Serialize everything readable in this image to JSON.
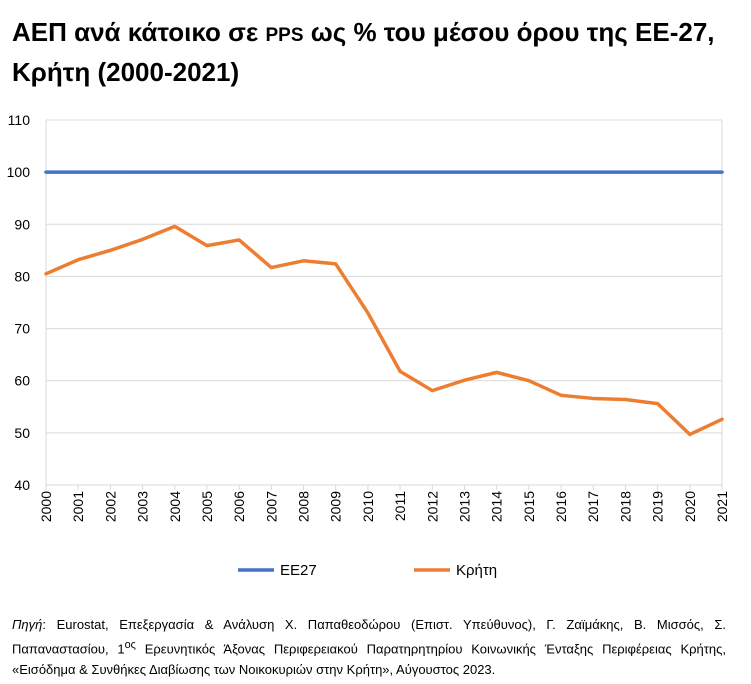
{
  "title": {
    "part1": "ΑΕΠ ανά κάτοικο σε",
    "pps": "PPS",
    "part2": "ως % του μέσου όρου της ΕΕ-27, Κρήτη (2000-2021)"
  },
  "chart_data": {
    "type": "line",
    "title": "ΑΕΠ ανά κάτοικο σε PPS ως % του μέσου όρου της ΕΕ-27, Κρήτη (2000-2021)",
    "x": [
      "2000",
      "2001",
      "2002",
      "2003",
      "2004",
      "2005",
      "2006",
      "2007",
      "2008",
      "2009",
      "2010",
      "2011",
      "2012",
      "2013",
      "2014",
      "2015",
      "2016",
      "2017",
      "2018",
      "2019",
      "2020",
      "2021"
    ],
    "ylim": [
      40,
      110
    ],
    "yticks": [
      40,
      50,
      60,
      70,
      80,
      90,
      100,
      110
    ],
    "grid": true,
    "legend_position": "bottom",
    "xlabel": "",
    "ylabel": "",
    "series": [
      {
        "name": "ΕΕ27",
        "color": "#4472C4",
        "values": [
          100,
          100,
          100,
          100,
          100,
          100,
          100,
          100,
          100,
          100,
          100,
          100,
          100,
          100,
          100,
          100,
          100,
          100,
          100,
          100,
          100,
          100
        ]
      },
      {
        "name": "Κρήτη",
        "color": "#ED7D31",
        "values": [
          80.5,
          83.2,
          85.0,
          87.1,
          89.6,
          85.9,
          87.0,
          81.7,
          83.0,
          82.4,
          73.0,
          61.8,
          58.1,
          60.1,
          61.6,
          60.0,
          57.2,
          56.6,
          56.4,
          55.6,
          49.7,
          52.6
        ]
      }
    ]
  },
  "source": {
    "label": "Πηγή",
    "text": ": Eurostat, Επεξεργασία & Ανάλυση Χ. Παπαθεοδώρου (Επιστ. Υπεύθυνος), Γ. Ζαϊμάκης, Β. Μισσός, Σ. Παπαναστασίου, 1",
    "sup": "ος",
    "text2": " Ερευνητικός Άξονας Περιφερειακού Παρατηρητηρίου Κοινωνικής Ένταξης Περιφέρειας Κρήτης, «Εισόδημα & Συνθήκες Διαβίωσης των Νοικοκυριών στην Κρήτη», Αύγουστος 2023."
  }
}
